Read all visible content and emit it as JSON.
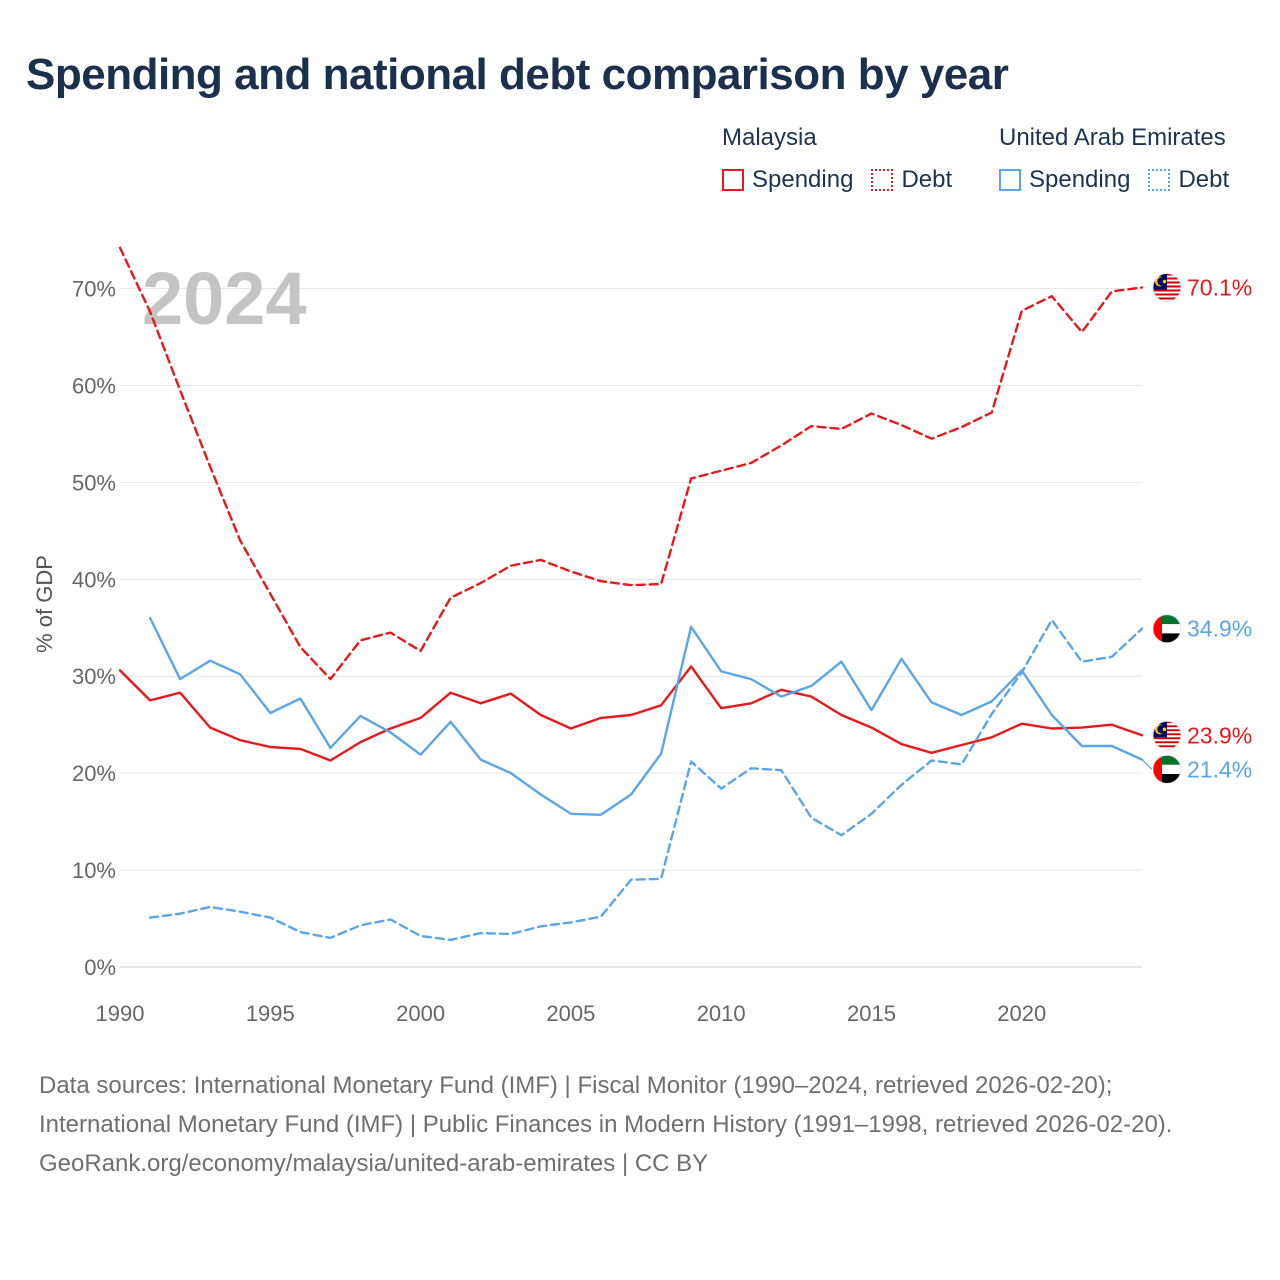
{
  "title": "Spending and national debt comparison by year",
  "legend": {
    "groups": [
      {
        "country": "Malaysia",
        "color": "#e41a1c",
        "items": [
          {
            "label": "Spending",
            "style": "solid"
          },
          {
            "label": "Debt",
            "style": "dotted"
          }
        ]
      },
      {
        "country": "United Arab Emirates",
        "color": "#5aa6e6",
        "items": [
          {
            "label": "Spending",
            "style": "solid"
          },
          {
            "label": "Debt",
            "style": "dotted"
          }
        ]
      }
    ]
  },
  "chart_data": {
    "type": "line",
    "year_label": "2024",
    "ylabel": "% of GDP",
    "xlim": [
      1990,
      2024
    ],
    "ylim": [
      0,
      75
    ],
    "x_ticks": [
      "1990",
      "1995",
      "2000",
      "2005",
      "2010",
      "2015",
      "2020"
    ],
    "y_ticks": [
      {
        "value": 0,
        "label": "0%"
      },
      {
        "value": 10,
        "label": "10%"
      },
      {
        "value": 20,
        "label": "20%"
      },
      {
        "value": 30,
        "label": "30%"
      },
      {
        "value": 40,
        "label": "40%"
      },
      {
        "value": 50,
        "label": "50%"
      },
      {
        "value": 60,
        "label": "60%"
      },
      {
        "value": 70,
        "label": "70%"
      }
    ],
    "series": [
      {
        "name": "Malaysia Debt",
        "country": "Malaysia",
        "indicator": "Debt",
        "color": "#e41a1c",
        "dash": "dashed",
        "x": [
          1990,
          1991,
          1992,
          1993,
          1994,
          1995,
          1996,
          1997,
          1998,
          1999,
          2000,
          2001,
          2002,
          2003,
          2004,
          2005,
          2006,
          2007,
          2008,
          2009,
          2010,
          2011,
          2012,
          2013,
          2014,
          2015,
          2016,
          2017,
          2018,
          2019,
          2020,
          2021,
          2022,
          2023,
          2024
        ],
        "values": [
          74.2,
          67.6,
          59.5,
          51.6,
          44.0,
          38.5,
          33.0,
          29.7,
          33.7,
          34.5,
          32.6,
          38.1,
          39.6,
          41.4,
          42.0,
          40.8,
          39.8,
          39.4,
          39.5,
          50.4,
          51.2,
          52.0,
          53.8,
          55.8,
          55.5,
          57.1,
          55.9,
          54.5,
          55.7,
          57.2,
          67.7,
          69.2,
          65.5,
          69.7,
          70.1
        ],
        "end_label": "70.1%",
        "flag": "my"
      },
      {
        "name": "Malaysia Spending",
        "country": "Malaysia",
        "indicator": "Spending",
        "color": "#e41a1c",
        "dash": "solid",
        "x": [
          1990,
          1991,
          1992,
          1993,
          1994,
          1995,
          1996,
          1997,
          1998,
          1999,
          2000,
          2001,
          2002,
          2003,
          2004,
          2005,
          2006,
          2007,
          2008,
          2009,
          2010,
          2011,
          2012,
          2013,
          2014,
          2015,
          2016,
          2017,
          2018,
          2019,
          2020,
          2021,
          2022,
          2023,
          2024
        ],
        "values": [
          30.6,
          27.5,
          28.3,
          24.7,
          23.4,
          22.7,
          22.5,
          21.3,
          23.2,
          24.6,
          25.7,
          28.3,
          27.2,
          28.2,
          26.0,
          24.6,
          25.7,
          26.0,
          27.0,
          31.0,
          26.7,
          27.2,
          28.6,
          27.9,
          26.0,
          24.7,
          23.0,
          22.1,
          22.9,
          23.7,
          25.1,
          24.6,
          24.7,
          25.0,
          23.9
        ],
        "end_label": "23.9%",
        "flag": "my"
      },
      {
        "name": "United Arab Emirates Debt",
        "country": "United Arab Emirates",
        "indicator": "Debt",
        "color": "#5aa6e6",
        "dash": "dashed",
        "x": [
          1991,
          1992,
          1993,
          1994,
          1995,
          1996,
          1997,
          1998,
          1999,
          2000,
          2001,
          2002,
          2003,
          2004,
          2005,
          2006,
          2007,
          2008,
          2009,
          2010,
          2011,
          2012,
          2013,
          2014,
          2015,
          2016,
          2017,
          2018,
          2019,
          2020,
          2021,
          2022,
          2023,
          2024
        ],
        "values": [
          5.1,
          5.5,
          6.2,
          5.7,
          5.1,
          3.6,
          3.0,
          4.3,
          4.9,
          3.2,
          2.8,
          3.5,
          3.4,
          4.2,
          4.6,
          5.2,
          9.0,
          9.1,
          21.2,
          18.4,
          20.5,
          20.3,
          15.4,
          13.6,
          15.8,
          18.8,
          21.3,
          20.9,
          26.1,
          30.4,
          35.8,
          31.5,
          32.0,
          34.9
        ],
        "end_label": "34.9%",
        "flag": "ae"
      },
      {
        "name": "United Arab Emirates Spending",
        "country": "United Arab Emirates",
        "indicator": "Spending",
        "color": "#5aa6e6",
        "dash": "solid",
        "x": [
          1991,
          1992,
          1993,
          1994,
          1995,
          1996,
          1997,
          1998,
          1999,
          2000,
          2001,
          2002,
          2003,
          2004,
          2005,
          2006,
          2007,
          2008,
          2009,
          2010,
          2011,
          2012,
          2013,
          2014,
          2015,
          2016,
          2017,
          2018,
          2019,
          2020,
          2021,
          2022,
          2023,
          2024
        ],
        "values": [
          36.0,
          29.7,
          31.6,
          30.2,
          26.2,
          27.7,
          22.6,
          25.9,
          24.2,
          21.9,
          25.3,
          21.4,
          20.0,
          17.8,
          15.8,
          15.7,
          17.8,
          22.0,
          35.1,
          30.5,
          29.7,
          27.9,
          29.0,
          31.5,
          26.5,
          31.8,
          27.3,
          26.0,
          27.4,
          30.6,
          26.0,
          22.8,
          22.8,
          21.4
        ],
        "end_label": "21.4%",
        "flag": "ae"
      }
    ]
  },
  "footer": {
    "sources": "Data sources: International Monetary Fund (IMF) | Fiscal Monitor (1990–2024, retrieved 2026-02-20); International Monetary Fund (IMF) | Public Finances in Modern History (1991–1998, retrieved 2026-02-20).",
    "credit": "GeoRank.org/economy/malaysia/united-arab-emirates | CC BY"
  }
}
